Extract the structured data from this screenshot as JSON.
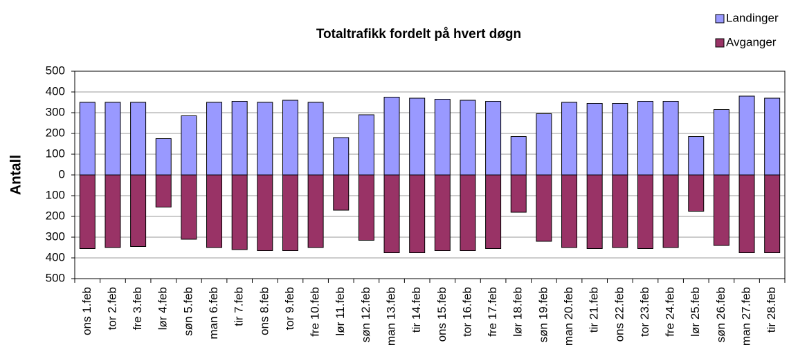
{
  "chart_data": {
    "type": "bar",
    "title": "Totaltrafikk fordelt på hvert døgn",
    "y_label": "Antall",
    "categories": [
      "ons 1.feb",
      "tor 2.feb",
      "fre 3.feb",
      "lør 4.feb",
      "søn 5.feb",
      "man 6.feb",
      "tir 7.feb",
      "ons 8.feb",
      "tor 9.feb",
      "fre 10.feb",
      "lør 11.feb",
      "søn 12.feb",
      "man 13.feb",
      "tir 14.feb",
      "ons 15.feb",
      "tor 16.feb",
      "fre 17.feb",
      "lør 18.feb",
      "søn 19.feb",
      "man 20.feb",
      "tir 21.feb",
      "ons 22.feb",
      "tor 23.feb",
      "fre 24.feb",
      "lør 25.feb",
      "søn 26.feb",
      "man 27.feb",
      "tir 28.feb"
    ],
    "series": [
      {
        "name": "Landinger",
        "color": "#9999ff",
        "values": [
          350,
          350,
          350,
          175,
          285,
          350,
          355,
          350,
          360,
          350,
          180,
          290,
          375,
          370,
          365,
          360,
          355,
          185,
          295,
          350,
          345,
          345,
          355,
          355,
          185,
          315,
          380,
          370
        ]
      },
      {
        "name": "Avganger",
        "color": "#993366",
        "values": [
          -355,
          -350,
          -345,
          -155,
          -310,
          -350,
          -360,
          -365,
          -365,
          -350,
          -170,
          -315,
          -375,
          -375,
          -365,
          -365,
          -355,
          -180,
          -320,
          -350,
          -355,
          -350,
          -355,
          -350,
          -175,
          -340,
          -375,
          -375
        ]
      }
    ],
    "ylim": [
      -500,
      500
    ],
    "yticks": [
      {
        "value": -500,
        "label": "500"
      },
      {
        "value": -400,
        "label": "400"
      },
      {
        "value": -300,
        "label": "300"
      },
      {
        "value": -200,
        "label": "200"
      },
      {
        "value": -100,
        "label": "100"
      },
      0,
      100,
      200,
      300,
      400,
      500
    ],
    "grid": true,
    "legend": "top-right"
  }
}
